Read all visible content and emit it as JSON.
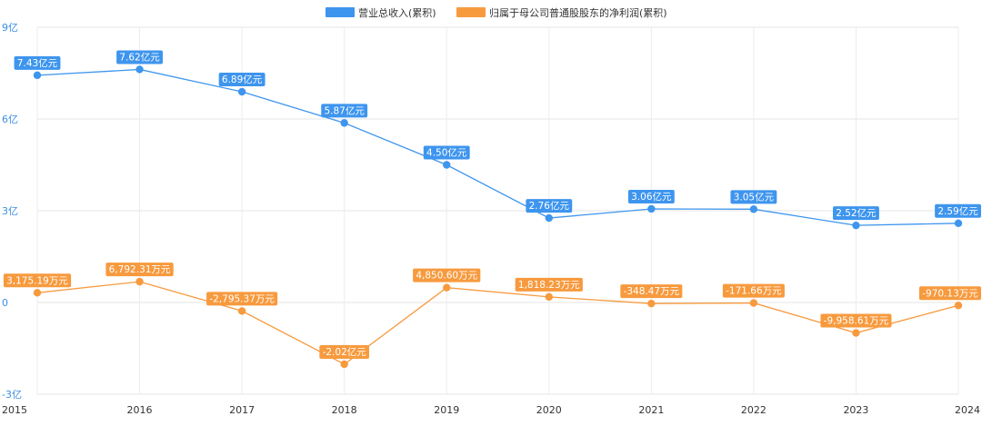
{
  "chart_data": {
    "type": "line",
    "title": "",
    "xlabel": "",
    "ylabel": "",
    "x": [
      "2015",
      "2016",
      "2017",
      "2018",
      "2019",
      "2020",
      "2021",
      "2022",
      "2023",
      "2024"
    ],
    "ylim": [
      -300000000,
      900000000
    ],
    "yticks": [
      {
        "value": 900000000,
        "label": "9亿"
      },
      {
        "value": 600000000,
        "label": "6亿"
      },
      {
        "value": 300000000,
        "label": "3亿"
      },
      {
        "value": 0,
        "label": "0"
      },
      {
        "value": -300000000,
        "label": "-3亿"
      }
    ],
    "grid": true,
    "legend_position": "top-center",
    "series": [
      {
        "name": "营业总收入(累积)",
        "color": "#3e95ee",
        "values": [
          743000000,
          762000000,
          689000000,
          587000000,
          450000000,
          276000000,
          306000000,
          305000000,
          252000000,
          259000000
        ],
        "labels": [
          "7.43亿元",
          "7.62亿元",
          "6.89亿元",
          "5.87亿元",
          "4.50亿元",
          "2.76亿元",
          "3.06亿元",
          "3.05亿元",
          "2.52亿元",
          "2.59亿元"
        ]
      },
      {
        "name": "归属于母公司普通股股东的净利润(累积)",
        "color": "#f79a3e",
        "values": [
          31751900,
          67923100,
          -27953700,
          -202000000,
          48506000,
          18182300,
          -3484700,
          -1716600,
          -99586100,
          -9701300
        ],
        "labels": [
          "3,175.19万元",
          "6,792.31万元",
          "-2,795.37万元",
          "-2.02亿元",
          "4,850.60万元",
          "1,818.23万元",
          "-348.47万元",
          "-171.66万元",
          "-9,958.61万元",
          "-970.13万元"
        ]
      }
    ]
  }
}
